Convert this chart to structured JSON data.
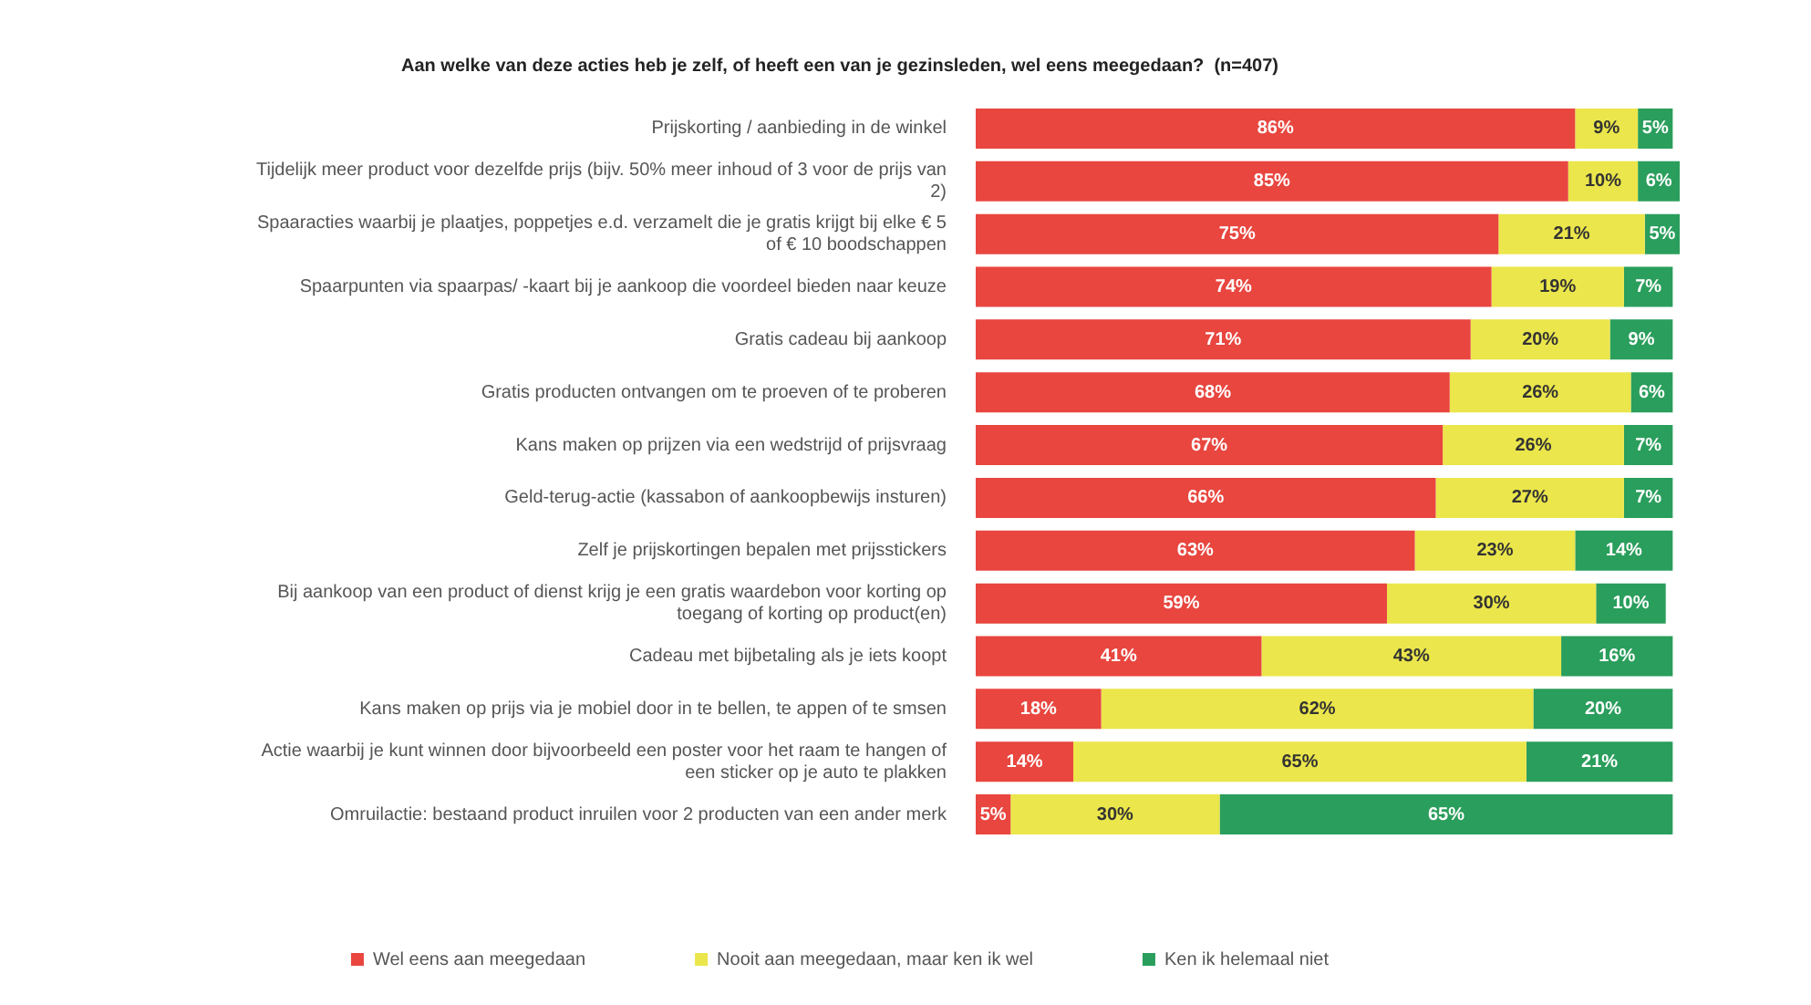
{
  "chart_data": {
    "type": "bar",
    "orientation": "horizontal",
    "stacked": true,
    "title": "Aan welke van deze acties heb je zelf, of heeft een van je gezinsleden, wel eens meegedaan?  (n=407)",
    "categories": [
      "Prijskorting / aanbieding in de winkel",
      "Tijdelijk meer product voor dezelfde prijs (bijv. 50% meer inhoud of 3 voor de prijs van 2)",
      "Spaaracties waarbij je plaatjes, poppetjes e.d. verzamelt die je gratis krijgt bij elke € 5 of € 10 boodschappen",
      "Spaarpunten via spaarpas/ -kaart bij je aankoop die voordeel bieden naar keuze",
      "Gratis cadeau bij aankoop",
      "Gratis producten ontvangen om te proeven of te proberen",
      "Kans maken op prijzen via een wedstrijd of prijsvraag",
      "Geld-terug-actie (kassabon of aankoopbewijs insturen)",
      "Zelf je prijskortingen bepalen met prijsstickers",
      "Bij aankoop van een product of dienst krijg je een gratis waardebon voor korting op toegang of korting op product(en)",
      "Cadeau met bijbetaling als je iets koopt",
      "Kans maken op prijs via je mobiel door in te bellen, te appen of te smsen",
      "Actie waarbij je kunt winnen door bijvoorbeeld een poster voor het raam te hangen of een sticker op je auto te plakken",
      "Omruilactie: bestaand product inruilen voor 2 producten van een ander merk"
    ],
    "series": [
      {
        "name": "Wel eens aan meegedaan",
        "color": "#e8463f",
        "values": [
          86,
          85,
          75,
          74,
          71,
          68,
          67,
          66,
          63,
          59,
          41,
          18,
          14,
          5
        ],
        "value_labels": [
          "86%",
          "85%",
          "75%",
          "74%",
          "71%",
          "68%",
          "67%",
          "66%",
          "63%",
          "59%",
          "41%",
          "18%",
          "14%",
          "5%"
        ]
      },
      {
        "name": "Nooit aan meegedaan, maar ken ik wel",
        "color": "#ebe64b",
        "values": [
          9,
          10,
          21,
          19,
          20,
          26,
          26,
          27,
          23,
          30,
          43,
          62,
          65,
          30
        ],
        "value_labels": [
          "9%",
          "10%",
          "21%",
          "19%",
          "20%",
          "26%",
          "26%",
          "27%",
          "23%",
          "30%",
          "43%",
          "62%",
          "65%",
          "30%"
        ]
      },
      {
        "name": "Ken ik helemaal niet",
        "color": "#2a9e5c",
        "values": [
          5,
          6,
          5,
          7,
          9,
          6,
          7,
          7,
          14,
          10,
          16,
          20,
          21,
          65
        ],
        "value_labels": [
          "5%",
          "6%",
          "5%",
          "7%",
          "9%",
          "6%",
          "7%",
          "7%",
          "14%",
          "10%",
          "16%",
          "20%",
          "21%",
          "65%"
        ]
      }
    ],
    "xlim": [
      0,
      101
    ],
    "tick_labels": "y",
    "legend": "bottom"
  }
}
